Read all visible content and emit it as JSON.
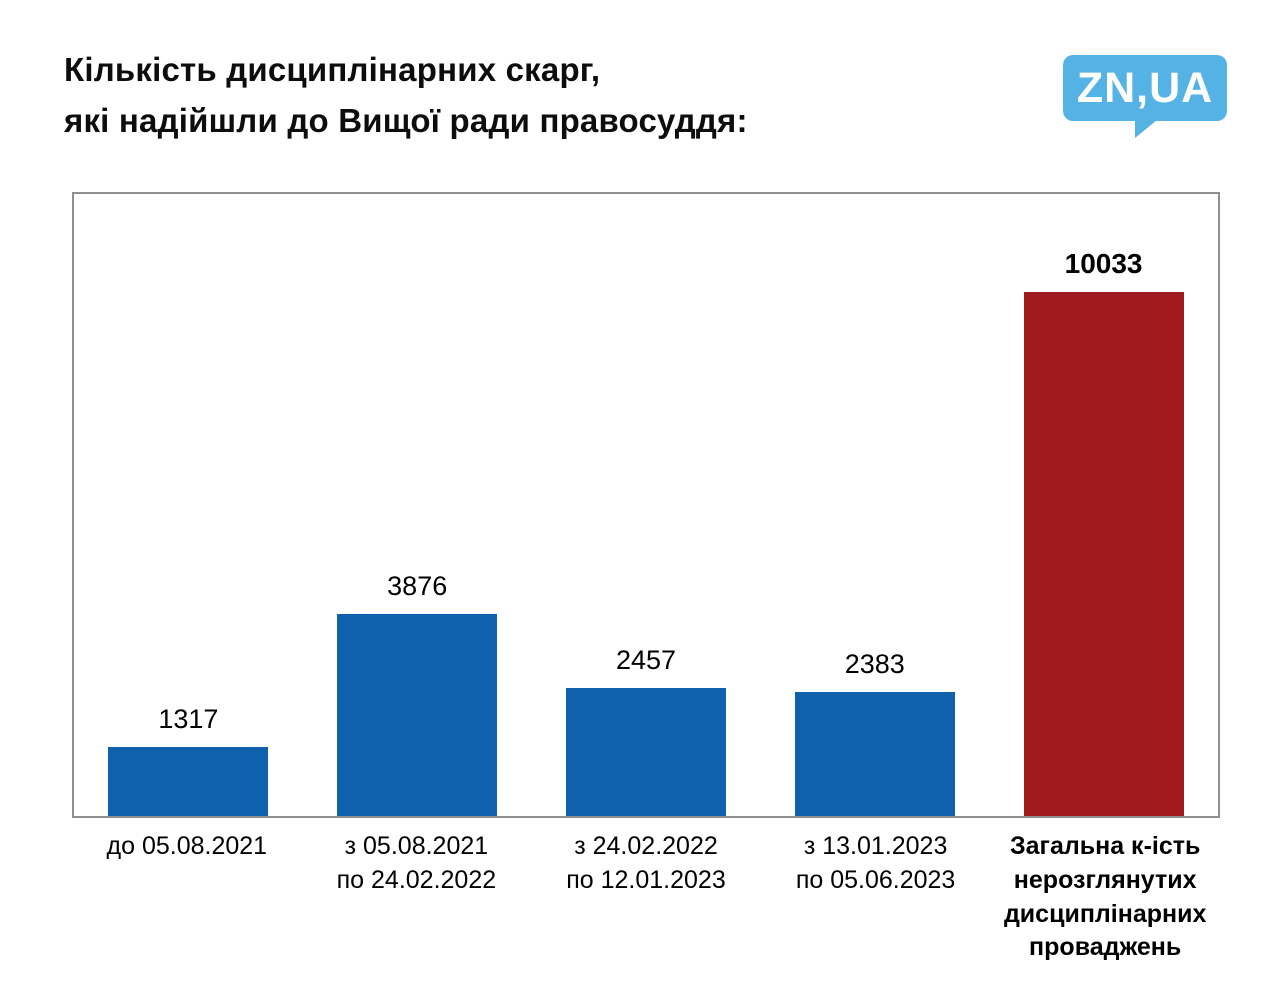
{
  "header": {
    "title_lines": [
      "Кількість дисциплінарних скарг,",
      "які надійшли до Вищої ради правосуддя:"
    ],
    "logo_text": "ZN,UA",
    "logo_color": "#55b2e5"
  },
  "chart_data": {
    "type": "bar",
    "title": "Кількість дисциплінарних скарг, які надійшли до Вищої ради правосуддя:",
    "values": [
      1317,
      3876,
      2457,
      2383,
      10033
    ],
    "value_labels": [
      "1317",
      "3876",
      "2457",
      "2383",
      "10033"
    ],
    "categories": [
      {
        "lines": [
          "до 05.08.2021"
        ],
        "bold": false
      },
      {
        "lines": [
          "з 05.08.2021",
          "по 24.02.2022"
        ],
        "bold": false
      },
      {
        "lines": [
          "з 24.02.2022",
          "по 12.01.2023"
        ],
        "bold": false
      },
      {
        "lines": [
          "з 13.01.2023",
          "по 05.06.2023"
        ],
        "bold": false
      },
      {
        "lines": [
          "Загальна к-ість",
          "нерозглянутих",
          "дисциплінарних",
          "проваджень"
        ],
        "bold": true
      }
    ],
    "bar_colors": [
      "#0f61ae",
      "#0f61ae",
      "#0f61ae",
      "#0f61ae",
      "#a01b1d"
    ],
    "highlight_index": 4,
    "ylim": [
      0,
      11900
    ],
    "grid": false,
    "legend": false,
    "frame_border_color": "#8f8f8f"
  }
}
